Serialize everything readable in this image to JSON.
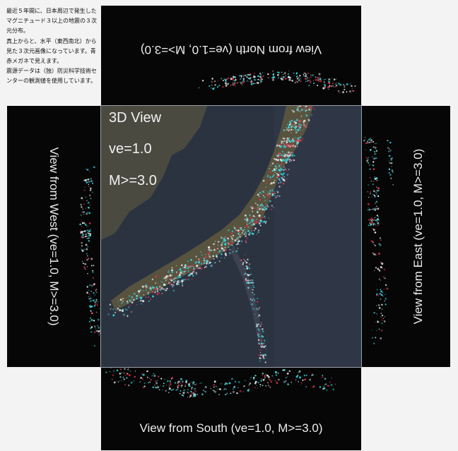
{
  "note": {
    "text": "最近５年間に、日本周辺で発生したマグニチュード３以上の地震の３次元分布。\n真上からと、水平（東西南北）から見た３次元画像になっています。青赤メガネで見えます。\n震源データは（独）防災科学技術センターの観測値を使用しています。"
  },
  "panels": {
    "north": {
      "label": "View from North (ve=1.0, M>=3.0)"
    },
    "south": {
      "label": "View from South (ve=1.0, M>=3.0)"
    },
    "west": {
      "label": "View from West (ve=1.0, M>=3.0)"
    },
    "east": {
      "label": "View from East (ve=1.0, M>=3.0)"
    }
  },
  "center": {
    "title": "3D View",
    "ve": "ve=1.0",
    "magnitude": "M>=3.0"
  },
  "colors": {
    "page_bg": "#f3f3f3",
    "panel_bg": "#060606",
    "map_sea": "#2c3340",
    "map_land": "#4d4a3f",
    "quake_cyan": "#35d6e0",
    "quake_red": "#e0304a",
    "quake_white": "#e8e8e8"
  }
}
